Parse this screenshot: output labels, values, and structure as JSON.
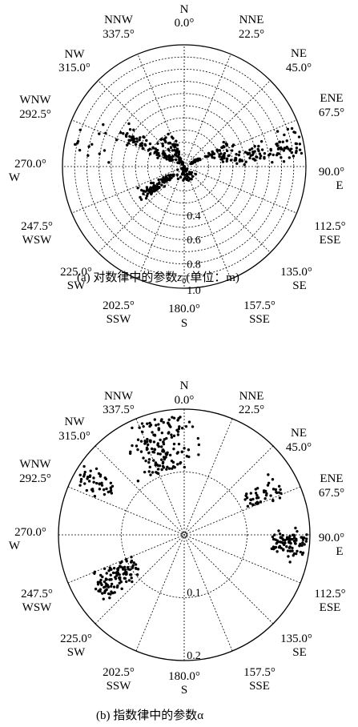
{
  "chart_data": [
    {
      "type": "scatter",
      "projection": "polar",
      "caption": "(a)  对数律中的参数z0(单位：m)",
      "caption_prefix": "(a)  对数律中的参数",
      "caption_var": "z",
      "caption_sub": "0",
      "caption_suffix": "(单位：m)",
      "radial_ticks": [
        "0.4",
        "0.6",
        "0.8",
        "1.0"
      ],
      "radial_range": [
        0,
        1.0
      ],
      "angle_labels": [
        {
          "name": "N",
          "deg": "0.0°"
        },
        {
          "name": "NNE",
          "deg": "22.5°"
        },
        {
          "name": "NE",
          "deg": "45.0°"
        },
        {
          "name": "ENE",
          "deg": "67.5°"
        },
        {
          "name": "E",
          "deg": "90.0°"
        },
        {
          "name": "ESE",
          "deg": "112.5°"
        },
        {
          "name": "SE",
          "deg": "135.0°"
        },
        {
          "name": "SSE",
          "deg": "157.5°"
        },
        {
          "name": "S",
          "deg": "180.0°"
        },
        {
          "name": "SSW",
          "deg": "202.5°"
        },
        {
          "name": "SW",
          "deg": "225.0°"
        },
        {
          "name": "WSW",
          "deg": "247.5°"
        },
        {
          "name": "W",
          "deg": "270.0°"
        },
        {
          "name": "WNW",
          "deg": "292.5°"
        },
        {
          "name": "NW",
          "deg": "315.0°"
        },
        {
          "name": "NNW",
          "deg": "337.5°"
        }
      ],
      "clusters": [
        {
          "direction_deg": 80,
          "direction_spread_deg": 12,
          "r_min": 0.3,
          "r_max": 0.98,
          "count": 110
        },
        {
          "direction_deg": 65,
          "direction_spread_deg": 10,
          "r_min": 0.05,
          "r_max": 0.45,
          "count": 50
        },
        {
          "direction_deg": 300,
          "direction_spread_deg": 14,
          "r_min": 0.05,
          "r_max": 0.6,
          "count": 80
        },
        {
          "direction_deg": 330,
          "direction_spread_deg": 25,
          "r_min": 0.02,
          "r_max": 0.3,
          "count": 60
        },
        {
          "direction_deg": 235,
          "direction_spread_deg": 12,
          "r_min": 0.1,
          "r_max": 0.45,
          "count": 80
        },
        {
          "direction_deg": 285,
          "direction_spread_deg": 20,
          "r_min": 0.6,
          "r_max": 0.95,
          "count": 14
        },
        {
          "direction_deg": 180,
          "direction_spread_deg": 90,
          "r_min": 0.0,
          "r_max": 0.12,
          "count": 40
        }
      ]
    },
    {
      "type": "scatter",
      "projection": "polar",
      "caption": "(b)  指数律中的参数α",
      "radial_ticks": [
        "0.1",
        "0.2"
      ],
      "radial_range": [
        0,
        0.2
      ],
      "angle_labels": [
        {
          "name": "N",
          "deg": "0.0°"
        },
        {
          "name": "NNE",
          "deg": "22.5°"
        },
        {
          "name": "NE",
          "deg": "45.0°"
        },
        {
          "name": "ENE",
          "deg": "67.5°"
        },
        {
          "name": "E",
          "deg": "90.0°"
        },
        {
          "name": "ESE",
          "deg": "112.5°"
        },
        {
          "name": "SE",
          "deg": "135.0°"
        },
        {
          "name": "SSE",
          "deg": "157.5°"
        },
        {
          "name": "S",
          "deg": "180.0°"
        },
        {
          "name": "SSW",
          "deg": "202.5°"
        },
        {
          "name": "SW",
          "deg": "225.0°"
        },
        {
          "name": "WSW",
          "deg": "247.5°"
        },
        {
          "name": "W",
          "deg": "270.0°"
        },
        {
          "name": "WNW",
          "deg": "292.5°"
        },
        {
          "name": "NW",
          "deg": "315.0°"
        },
        {
          "name": "NNW",
          "deg": "337.5°"
        }
      ],
      "clusters": [
        {
          "direction_deg": 345,
          "direction_spread_deg": 28,
          "r_min": 0.105,
          "r_max": 0.19,
          "count": 150
        },
        {
          "direction_deg": 300,
          "direction_spread_deg": 12,
          "r_min": 0.13,
          "r_max": 0.195,
          "count": 45
        },
        {
          "direction_deg": 63,
          "direction_spread_deg": 10,
          "r_min": 0.11,
          "r_max": 0.17,
          "count": 45
        },
        {
          "direction_deg": 95,
          "direction_spread_deg": 10,
          "r_min": 0.14,
          "r_max": 0.195,
          "count": 90
        },
        {
          "direction_deg": 238,
          "direction_spread_deg": 14,
          "r_min": 0.09,
          "r_max": 0.165,
          "count": 110
        }
      ]
    }
  ]
}
